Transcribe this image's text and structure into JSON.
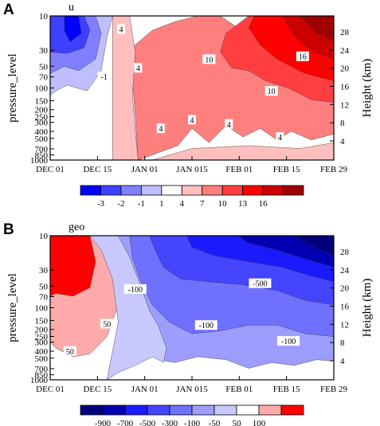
{
  "chart_data": [
    {
      "type": "heatmap",
      "panel_label": "A",
      "variable": "u",
      "ylabel": "pressure_level",
      "ylabel_right": "Height (km)",
      "x_ticks": [
        "DEC 01",
        "DEC 15",
        "JAN 01",
        "JAN 015",
        "FEB 01",
        "FEB 15",
        "FEB 29"
      ],
      "y_ticks": [
        10,
        30,
        50,
        70,
        100,
        150,
        200,
        250,
        300,
        400,
        500,
        700,
        850,
        1000
      ],
      "y_scale": "log",
      "y_right_ticks": [
        28,
        24,
        20,
        16,
        12,
        8,
        4
      ],
      "colorbar_levels": [
        -3,
        -2,
        -1,
        1,
        4,
        7,
        10,
        13,
        16
      ],
      "colorbar_colors": [
        "#0000ff",
        "#3f3fff",
        "#7f7fff",
        "#bfbfff",
        "#ffffff",
        "#ffbfbf",
        "#ff7f7f",
        "#ff3f3f",
        "#ff0000",
        "#cc0000",
        "#a00000"
      ],
      "contour_labels": [
        "-1",
        "4",
        "4",
        "4",
        "4",
        "4",
        "4",
        "10",
        "10",
        "16"
      ],
      "x_range": [
        "DEC 01",
        "FEB 29"
      ],
      "y_range": [
        1000,
        10
      ]
    },
    {
      "type": "heatmap",
      "panel_label": "B",
      "variable": "geo",
      "ylabel": "pressure_level",
      "ylabel_right": "Height (km)",
      "x_ticks": [
        "DEC 01",
        "DEC 15",
        "JAN 01",
        "JAN 015",
        "FEB 01",
        "FEB 15",
        "FEB 29"
      ],
      "y_ticks": [
        10,
        30,
        50,
        70,
        100,
        150,
        200,
        250,
        300,
        400,
        500,
        700,
        850,
        1000
      ],
      "y_scale": "log",
      "y_right_ticks": [
        28,
        24,
        20,
        16,
        12,
        8,
        4
      ],
      "colorbar_levels": [
        -900,
        -700,
        -500,
        -300,
        -100,
        -50,
        50,
        100
      ],
      "colorbar_colors": [
        "#00007f",
        "#0000b2",
        "#1a1aff",
        "#4545ff",
        "#7070ff",
        "#9d9dff",
        "#c8c8ff",
        "#ffffff",
        "#ffaaaa",
        "#ff0000"
      ],
      "contour_labels": [
        "50",
        "50",
        "-100",
        "-100",
        "-100",
        "-500"
      ],
      "x_range": [
        "DEC 01",
        "FEB 29"
      ],
      "y_range": [
        1000,
        10
      ]
    }
  ]
}
